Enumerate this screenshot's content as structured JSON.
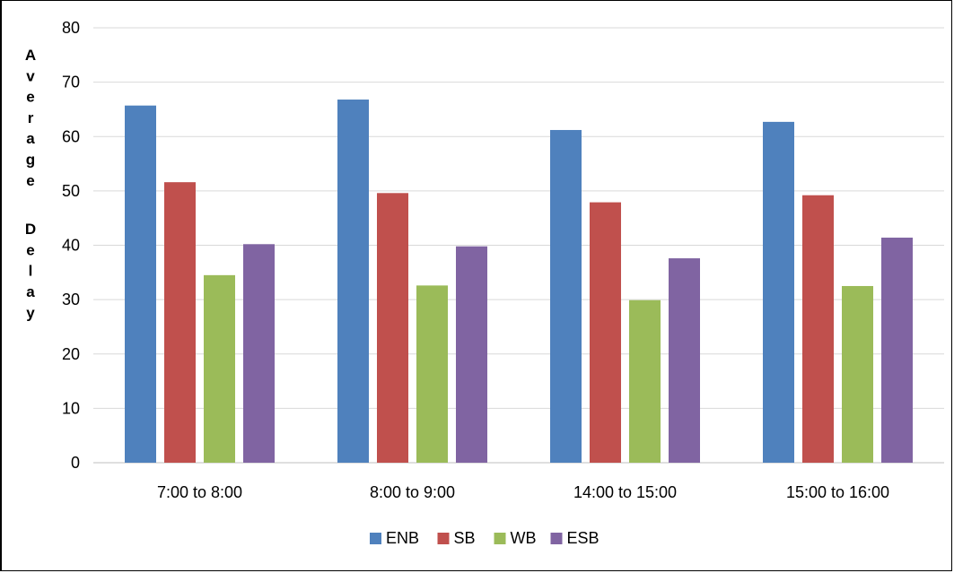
{
  "chart_data": {
    "type": "bar",
    "title": "",
    "xlabel": "",
    "ylabel": "Average Delay",
    "ylim": [
      0,
      80
    ],
    "ytick_step": 10,
    "grid": true,
    "legend_position": "bottom",
    "categories": [
      "7:00 to 8:00",
      "8:00 to 9:00",
      "14:00 to 15:00",
      "15:00 to 16:00"
    ],
    "series": [
      {
        "name": "ENB",
        "color": "#4F81BD",
        "values": [
          65.7,
          66.8,
          61.2,
          62.7
        ]
      },
      {
        "name": "SB",
        "color": "#C0504D",
        "values": [
          51.6,
          49.6,
          47.9,
          49.2
        ]
      },
      {
        "name": "WB",
        "color": "#9BBB59",
        "values": [
          34.5,
          32.6,
          29.9,
          32.5
        ]
      },
      {
        "name": "ESB",
        "color": "#8064A2",
        "values": [
          40.2,
          39.8,
          37.6,
          41.4
        ]
      }
    ]
  }
}
